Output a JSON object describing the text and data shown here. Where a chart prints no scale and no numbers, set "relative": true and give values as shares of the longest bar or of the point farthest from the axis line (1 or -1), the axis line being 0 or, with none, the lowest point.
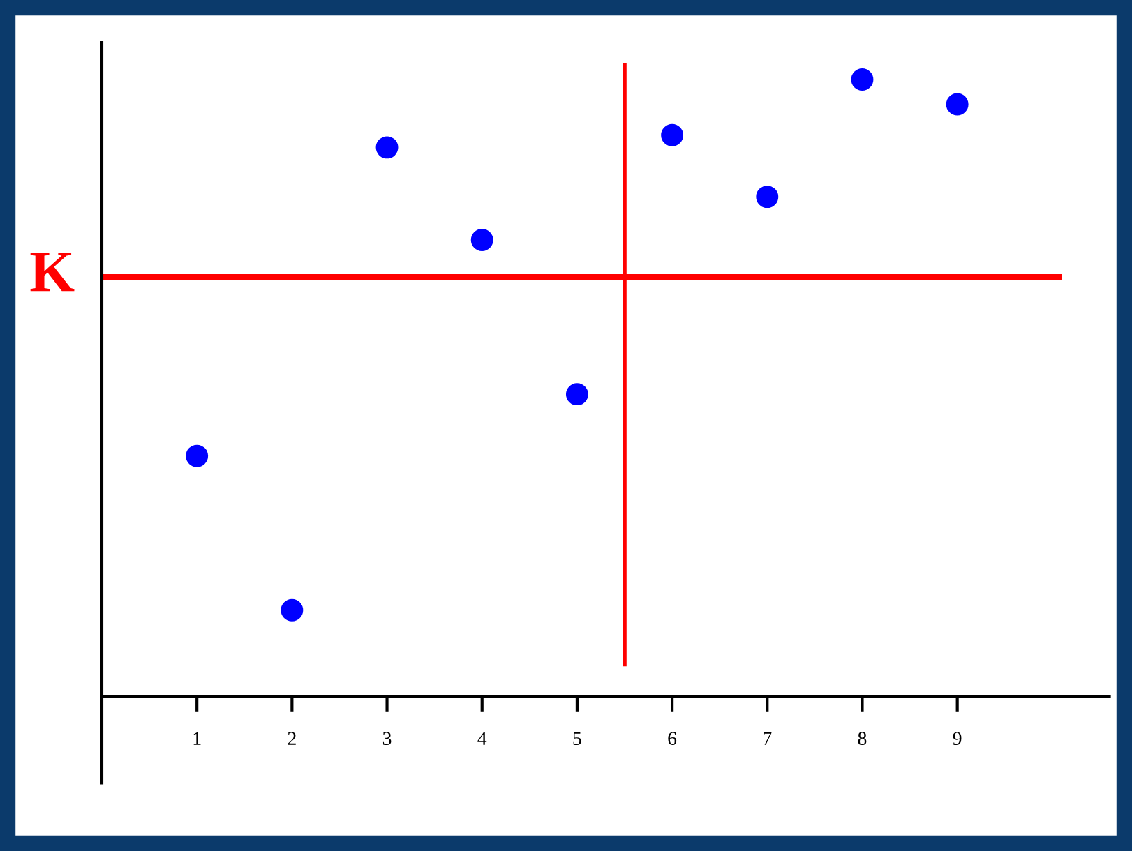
{
  "chart_data": {
    "type": "scatter",
    "relative": true,
    "marker": "circle",
    "grid": false,
    "x": [
      1,
      2,
      3,
      4,
      5,
      6,
      7,
      8,
      9
    ],
    "xlim": [
      0,
      10.6
    ],
    "xticks": [
      1,
      2,
      3,
      4,
      5,
      6,
      7,
      8,
      9
    ],
    "series": [
      {
        "color": "#0000ff",
        "values": [
          0.39,
          0.14,
          0.89,
          0.74,
          0.49,
          0.91,
          0.81,
          1.0,
          0.96
        ]
      }
    ],
    "ref_lines": [
      {
        "axis": "y",
        "value": 0.68,
        "label": "K",
        "color": "#ff0000"
      },
      {
        "axis": "x",
        "value": 5.5,
        "color": "#ff0000"
      }
    ]
  }
}
